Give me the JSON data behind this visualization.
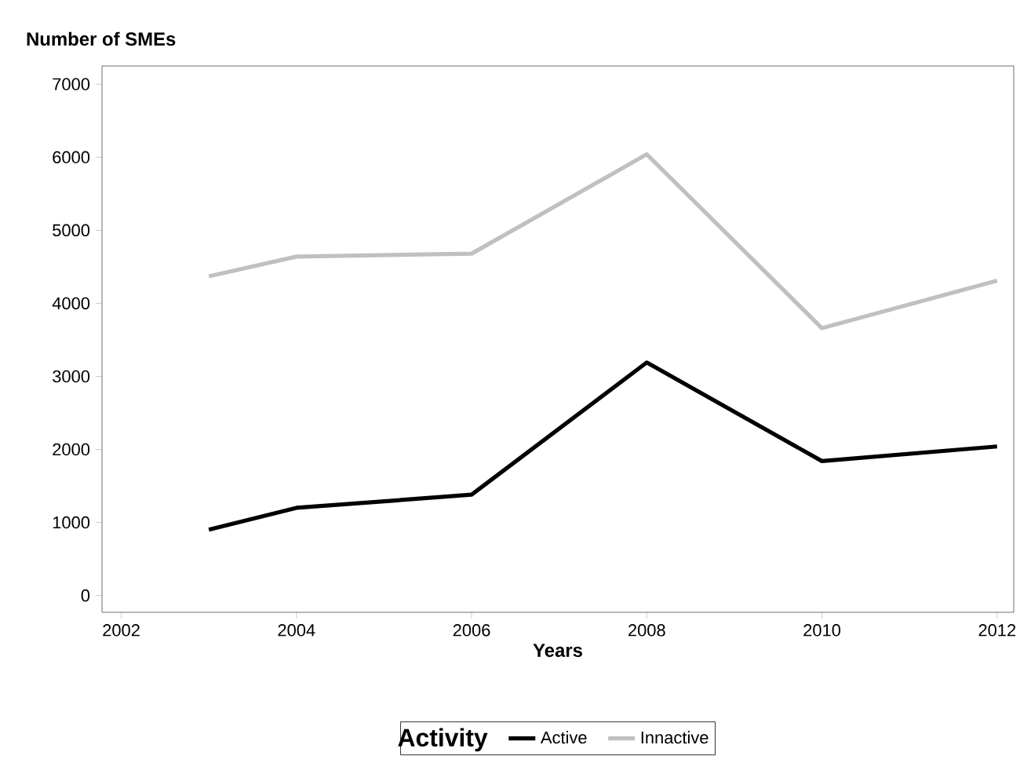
{
  "chart_data": {
    "type": "line",
    "ylabel": "Number of SMEs",
    "xlabel": "Years",
    "legend_title": "Activity",
    "x": [
      2003,
      2004,
      2006,
      2008,
      2010,
      2012
    ],
    "series": [
      {
        "name": "Active",
        "color": "#000000",
        "values": [
          900,
          1200,
          1380,
          3190,
          1840,
          2040
        ]
      },
      {
        "name": "Innactive",
        "color": "#c0c0c0",
        "values": [
          4370,
          4640,
          4680,
          6040,
          3660,
          4310
        ]
      }
    ],
    "xlim": [
      2001.78,
      2012.19
    ],
    "ylim": [
      -230,
      7250
    ],
    "xticks": [
      2002,
      2004,
      2006,
      2008,
      2010,
      2012
    ],
    "yticks": [
      0,
      1000,
      2000,
      3000,
      4000,
      5000,
      6000,
      7000
    ],
    "grid": false,
    "legend": "bottom",
    "marker": "none",
    "line_style": "solid"
  }
}
